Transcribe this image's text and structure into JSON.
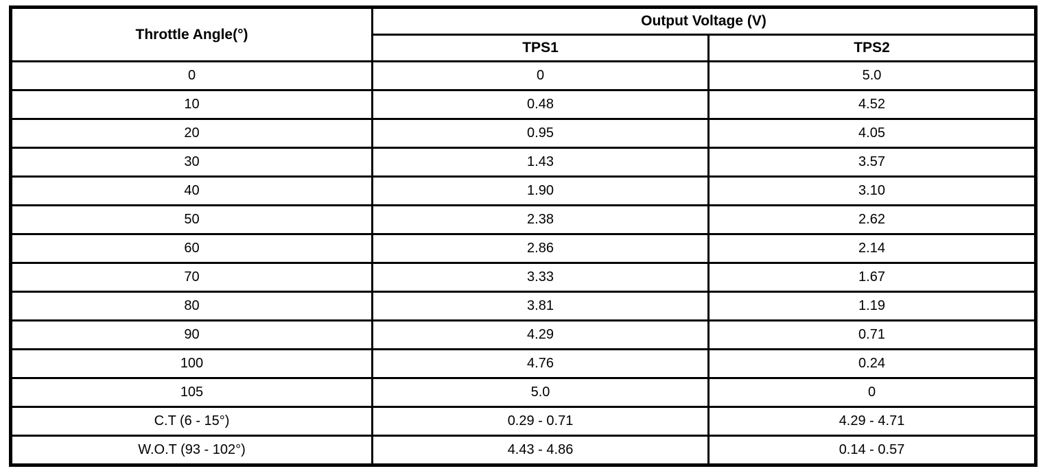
{
  "page": {
    "background_color": "#ffffff",
    "border_color": "#000000"
  },
  "table": {
    "header": {
      "angle_label": "Throttle Angle(°)",
      "group_label": "Output Voltage (V)",
      "sub": [
        "TPS1",
        "TPS2"
      ]
    },
    "rows": [
      [
        "0",
        "0",
        "5.0"
      ],
      [
        "10",
        "0.48",
        "4.52"
      ],
      [
        "20",
        "0.95",
        "4.05"
      ],
      [
        "30",
        "1.43",
        "3.57"
      ],
      [
        "40",
        "1.90",
        "3.10"
      ],
      [
        "50",
        "2.38",
        "2.62"
      ],
      [
        "60",
        "2.86",
        "2.14"
      ],
      [
        "70",
        "3.33",
        "1.67"
      ],
      [
        "80",
        "3.81",
        "1.19"
      ],
      [
        "90",
        "4.29",
        "0.71"
      ],
      [
        "100",
        "4.76",
        "0.24"
      ],
      [
        "105",
        "5.0",
        "0"
      ],
      [
        "C.T (6 - 15°)",
        "0.29 - 0.71",
        "4.29 - 4.71"
      ],
      [
        "W.O.T (93 - 102°)",
        "4.43 - 4.86",
        "0.14 - 0.57"
      ]
    ]
  },
  "chart_data": {
    "type": "table",
    "title": "Output Voltage (V)",
    "columns": [
      "Throttle Angle(°)",
      "TPS1",
      "TPS2"
    ],
    "rows": [
      [
        "0",
        "0",
        "5.0"
      ],
      [
        "10",
        "0.48",
        "4.52"
      ],
      [
        "20",
        "0.95",
        "4.05"
      ],
      [
        "30",
        "1.43",
        "3.57"
      ],
      [
        "40",
        "1.90",
        "3.10"
      ],
      [
        "50",
        "2.38",
        "2.62"
      ],
      [
        "60",
        "2.86",
        "2.14"
      ],
      [
        "70",
        "3.33",
        "1.67"
      ],
      [
        "80",
        "3.81",
        "1.19"
      ],
      [
        "90",
        "4.29",
        "0.71"
      ],
      [
        "100",
        "4.76",
        "0.24"
      ],
      [
        "105",
        "5.0",
        "0"
      ],
      [
        "C.T (6 - 15°)",
        "0.29 - 0.71",
        "4.29 - 4.71"
      ],
      [
        "W.O.T (93 - 102°)",
        "4.43 - 4.86",
        "0.14 - 0.57"
      ]
    ]
  }
}
